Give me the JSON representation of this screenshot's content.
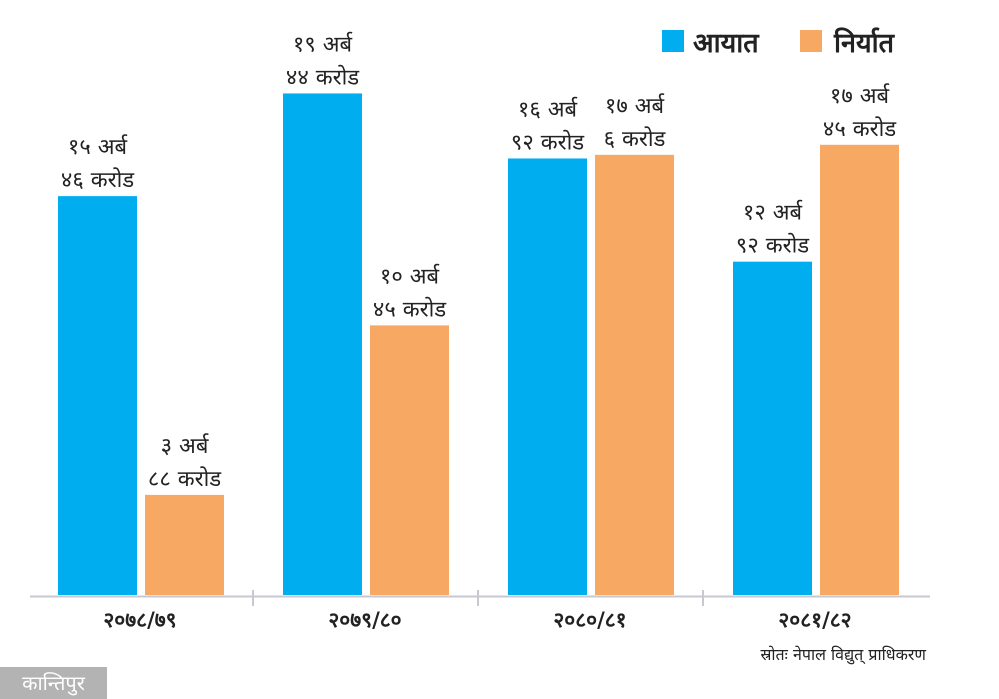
{
  "chart_data": {
    "type": "bar",
    "categories": [
      "२०७८/७९",
      "२०७९/८०",
      "२०८०/८१",
      "२०८१/८२"
    ],
    "unit": "अर्ब",
    "series": [
      {
        "name": "आयात",
        "color": "#00aeef",
        "values": [
          15.46,
          19.44,
          16.92,
          12.92
        ],
        "labels": [
          [
            "१५ अर्ब",
            "४६ करोड"
          ],
          [
            "१९ अर्ब",
            "४४ करोड"
          ],
          [
            "१६ अर्ब",
            "९२ करोड"
          ],
          [
            "१२ अर्ब",
            "९२ करोड"
          ]
        ]
      },
      {
        "name": "निर्यात",
        "color": "#f7a862",
        "values": [
          3.88,
          10.45,
          17.06,
          17.45
        ],
        "labels": [
          [
            "३ अर्ब",
            "८८ करोड"
          ],
          [
            "१० अर्ब",
            "४५ करोड"
          ],
          [
            "१७ अर्ब",
            "६ करोड"
          ],
          [
            "१७ अर्ब",
            "४५ करोड"
          ]
        ]
      }
    ],
    "legend_position": "top-right",
    "grid": false,
    "ylim": [
      0,
      23
    ]
  },
  "source": "स्रोतः नेपाल विद्युत् प्राधिकरण",
  "logo": "कान्तिपुर"
}
